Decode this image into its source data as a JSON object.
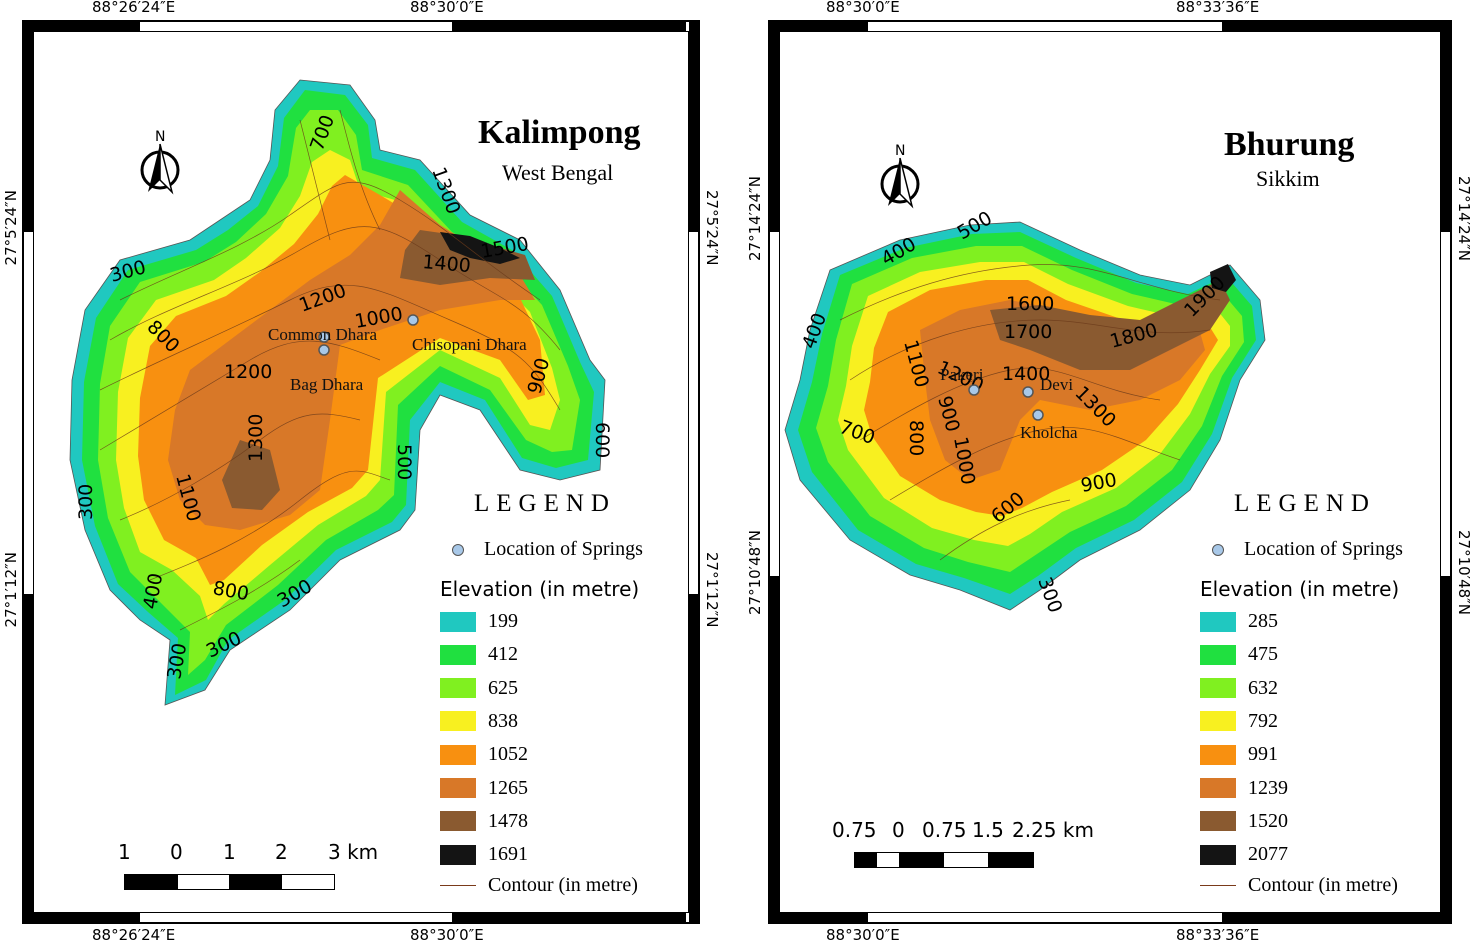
{
  "maps": [
    {
      "title": "Kalimpong",
      "subtitle": "West Bengal",
      "north_label": "N",
      "coords": {
        "top": [
          "88°26′24″E",
          "88°30′0″E"
        ],
        "bottom": [
          "88°26′24″E",
          "88°30′0″E"
        ],
        "left": [
          "27°5′24″N",
          "27°1′12″N"
        ],
        "right": [
          "27°5′24″N",
          "27°1′12″N"
        ]
      },
      "springs": [
        "Common Dhara",
        "Chisopani Dhara",
        "Bag Dhara"
      ],
      "contour_labels": [
        "700",
        "1300",
        "1500",
        "1400",
        "300",
        "1200",
        "1000",
        "800",
        "1200",
        "900",
        "1300",
        "600",
        "500",
        "1100",
        "300",
        "400",
        "800",
        "300",
        "300",
        "300"
      ],
      "legend": {
        "title": "LEGEND",
        "spring_label": "Location of Springs",
        "elevation_title": "Elevation (in metre)",
        "classes": [
          {
            "value": "199",
            "color": "#20c8c0"
          },
          {
            "value": "412",
            "color": "#20e040"
          },
          {
            "value": "625",
            "color": "#80f020"
          },
          {
            "value": "838",
            "color": "#f8f020"
          },
          {
            "value": "1052",
            "color": "#f89010"
          },
          {
            "value": "1265",
            "color": "#d87828"
          },
          {
            "value": "1478",
            "color": "#8a5a30"
          },
          {
            "value": "1691",
            "color": "#141414"
          }
        ],
        "contour_label": "Contour (in metre)"
      },
      "scale": {
        "ticks": [
          "1",
          "0",
          "1",
          "2",
          "3 km"
        ]
      }
    },
    {
      "title": "Bhurung",
      "subtitle": "Sikkim",
      "north_label": "N",
      "coords": {
        "top": [
          "88°30′0″E",
          "88°33′36″E"
        ],
        "bottom": [
          "88°30′0″E",
          "88°33′36″E"
        ],
        "left": [
          "27°14′24″N",
          "27°10′48″N"
        ],
        "right": [
          "27°14′24″N",
          "27°10′48″N"
        ]
      },
      "springs": [
        "Pakeri",
        "Devi",
        "Kholcha"
      ],
      "contour_labels": [
        "500",
        "400",
        "1600",
        "1900",
        "1700",
        "1800",
        "400",
        "1100",
        "1200",
        "1400",
        "1300",
        "700",
        "800",
        "900",
        "1000",
        "900",
        "600",
        "300"
      ],
      "legend": {
        "title": "LEGEND",
        "spring_label": "Location of Springs",
        "elevation_title": "Elevation (in metre)",
        "classes": [
          {
            "value": "285",
            "color": "#20c8c0"
          },
          {
            "value": "475",
            "color": "#20e040"
          },
          {
            "value": "632",
            "color": "#80f020"
          },
          {
            "value": "792",
            "color": "#f8f020"
          },
          {
            "value": "991",
            "color": "#f89010"
          },
          {
            "value": "1239",
            "color": "#d87828"
          },
          {
            "value": "1520",
            "color": "#8a5a30"
          },
          {
            "value": "2077",
            "color": "#141414"
          }
        ],
        "contour_label": "Contour (in metre)"
      },
      "scale": {
        "ticks": [
          "0.75",
          "0",
          "0.75",
          "1.5",
          "2.25 km"
        ]
      }
    }
  ]
}
